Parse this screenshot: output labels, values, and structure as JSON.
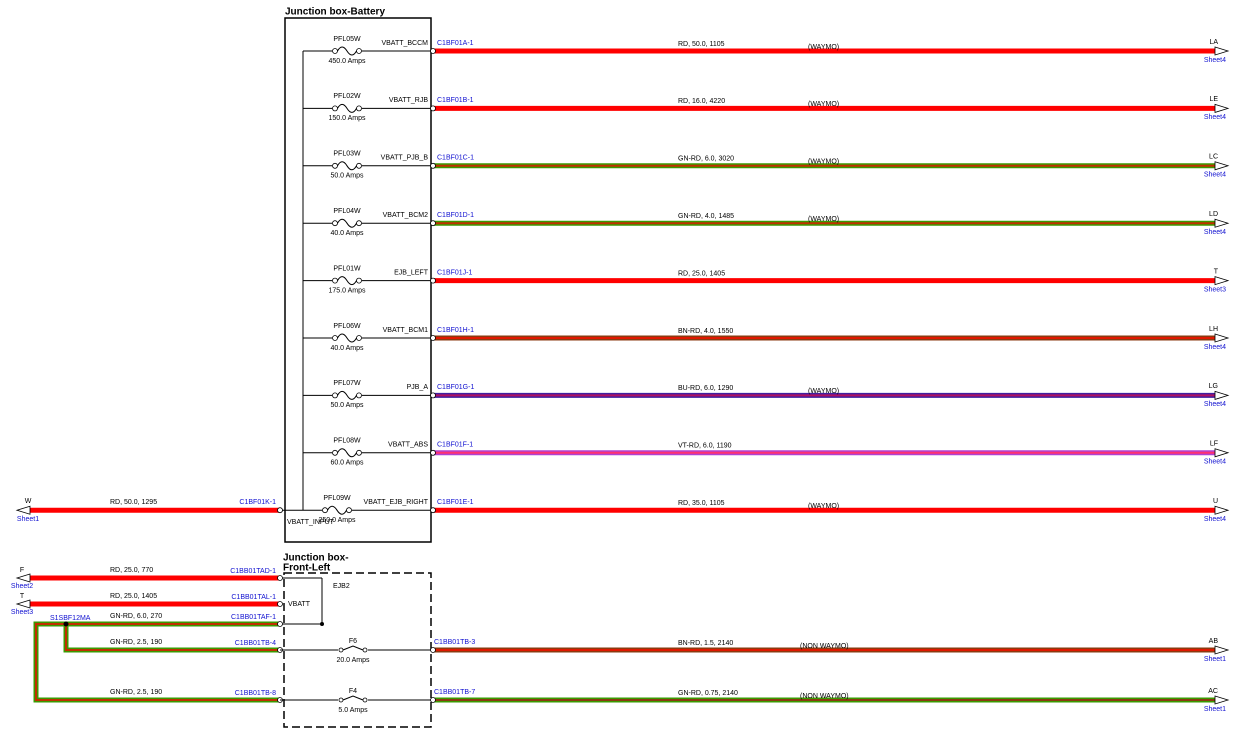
{
  "top_box": {
    "title": "Junction box-Battery",
    "input": {
      "dest": "W",
      "sheet": "Sheet1",
      "spec": "RD, 50.0, 1295",
      "connector": "C1BF01K-1",
      "circuit": "VBATT_INPUT",
      "color": "#ff0000",
      "stripe": null
    },
    "circuits": [
      {
        "fuse": "PFL05W",
        "rating": "450.0 Amps",
        "circuit": "VBATT_BCCM",
        "connector": "C1BF01A-1",
        "spec": "RD, 50.0, 1105",
        "note": "(WAYMO)",
        "dest": "LA",
        "sheet": "Sheet4",
        "color": "#ff0000",
        "stripe": null
      },
      {
        "fuse": "PFL02W",
        "rating": "150.0 Amps",
        "circuit": "VBATT_RJB",
        "connector": "C1BF01B-1",
        "spec": "RD, 16.0, 4220",
        "note": "(WAYMO)",
        "dest": "LE",
        "sheet": "Sheet4",
        "color": "#ff0000",
        "stripe": null
      },
      {
        "fuse": "PFL03W",
        "rating": "50.0 Amps",
        "circuit": "VBATT_PJB_B",
        "connector": "C1BF01C-1",
        "spec": "GN-RD, 6.0, 3020",
        "note": "(WAYMO)",
        "dest": "LC",
        "sheet": "Sheet4",
        "color": "#3a9a00",
        "stripe": "#c03000"
      },
      {
        "fuse": "PFL04W",
        "rating": "40.0 Amps",
        "circuit": "VBATT_BCM2",
        "connector": "C1BF01D-1",
        "spec": "GN-RD, 4.0, 1485",
        "note": "(WAYMO)",
        "dest": "LD",
        "sheet": "Sheet4",
        "color": "#3a9a00",
        "stripe": "#c03000"
      },
      {
        "fuse": "PFL01W",
        "rating": "175.0 Amps",
        "circuit": "EJB_LEFT",
        "connector": "C1BF01J-1",
        "spec": "RD, 25.0, 1405",
        "note": null,
        "dest": "T",
        "sheet": "Sheet3",
        "color": "#ff0000",
        "stripe": null
      },
      {
        "fuse": "PFL06W",
        "rating": "40.0 Amps",
        "circuit": "VBATT_BCM1",
        "connector": "C1BF01H-1",
        "spec": "BN-RD, 4.0, 1550",
        "note": null,
        "dest": "LH",
        "sheet": "Sheet4",
        "color": "#8b3a10",
        "stripe": "#e01800"
      },
      {
        "fuse": "PFL07W",
        "rating": "50.0 Amps",
        "circuit": "PJB_A",
        "connector": "C1BF01G-1",
        "spec": "BU-RD, 6.0, 1290",
        "note": "(WAYMO)",
        "dest": "LG",
        "sheet": "Sheet4",
        "color": "#4020a0",
        "stripe": "#b01060"
      },
      {
        "fuse": "PFL08W",
        "rating": "60.0 Amps",
        "circuit": "VBATT_ABS",
        "connector": "C1BF01F-1",
        "spec": "VT-RD, 6.0, 1190",
        "note": null,
        "dest": "LF",
        "sheet": "Sheet4",
        "color": "#b040d0",
        "stripe": "#ff3070"
      },
      {
        "fuse": "PFL09W",
        "rating": "250.0 Amps",
        "circuit": "VBATT_EJB_RIGHT",
        "connector": "C1BF01E-1",
        "spec": "RD, 35.0, 1105",
        "note": "(WAYMO)",
        "dest": "U",
        "sheet": "Sheet4",
        "color": "#ff0000",
        "stripe": null
      }
    ]
  },
  "bottom_box": {
    "title_lines": [
      "Junction box-",
      "Front-Left"
    ],
    "fuse_block": "EJB2",
    "bus_label": "VBATT",
    "splice": "S1SBF12MA",
    "left_wires": [
      {
        "dest": "F",
        "sheet": "Sheet2",
        "spec": "RD, 25.0, 770",
        "connector": "C1BB01TAD-1",
        "color": "#ff0000",
        "stripe": null
      },
      {
        "dest": "T",
        "sheet": "Sheet3",
        "spec": "RD, 25.0, 1405",
        "connector": "C1BB01TAL-1",
        "color": "#ff0000",
        "stripe": null
      },
      {
        "spec": "GN-RD, 6.0, 270",
        "connector": "C1BB01TAF-1",
        "color": "#3a9a00",
        "stripe": "#c03000"
      },
      {
        "spec": "GN-RD, 2.5, 190",
        "connector": "C1BB01TB-4",
        "color": "#3a9a00",
        "stripe": "#c03000"
      },
      {
        "spec": "GN-RD, 2.5, 190",
        "connector": "C1BB01TB-8",
        "color": "#3a9a00",
        "stripe": "#c03000"
      }
    ],
    "fuses": [
      {
        "name": "F6",
        "rating": "20.0 Amps"
      },
      {
        "name": "F4",
        "rating": "5.0 Amps"
      }
    ],
    "right_wires": [
      {
        "connector": "C1BB01TB-3",
        "spec": "BN-RD, 1.5, 2140",
        "note": "(NON WAYMO)",
        "dest": "AB",
        "sheet": "Sheet1",
        "color": "#8b3a10",
        "stripe": "#e01800"
      },
      {
        "connector": "C1BB01TB-7",
        "spec": "GN-RD, 0.75, 2140",
        "note": "(NON WAYMO)",
        "dest": "AC",
        "sheet": "Sheet1",
        "color": "#3a9a00",
        "stripe": "#8b3a10"
      }
    ]
  }
}
